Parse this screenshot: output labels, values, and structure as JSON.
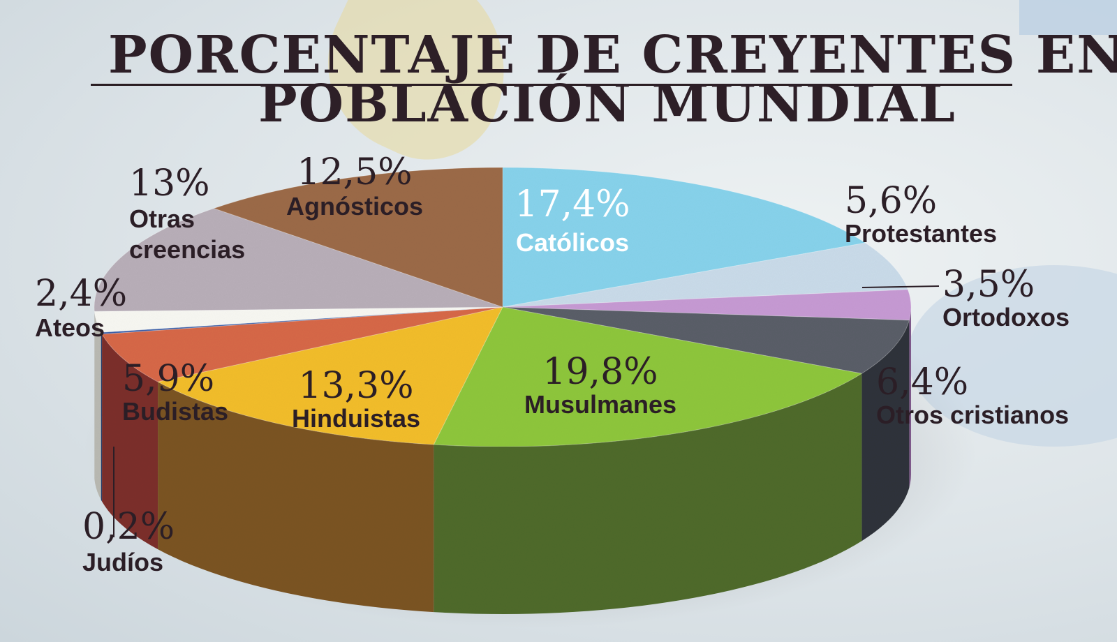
{
  "title": {
    "line1": "PORCENTAJE DE CREYENTES EN LA",
    "line2": "POBLACIÓN MUNDIAL"
  },
  "chart_data": {
    "type": "pie",
    "title": "PORCENTAJE DE CREYENTES EN LA POBLACIÓN MUNDIAL",
    "slices": [
      {
        "label": "Católicos",
        "percent_text": "17,4%",
        "value": 17.4,
        "color": "#87d2eb",
        "side": "#4b8fa8",
        "light_text": true
      },
      {
        "label": "Protestantes",
        "percent_text": "5,6%",
        "value": 5.6,
        "color": "#c9dbe9",
        "side": "#8da2b2"
      },
      {
        "label": "Ortodoxos",
        "percent_text": "3,5%",
        "value": 3.5,
        "color": "#c69ad3",
        "side": "#7f5a8c"
      },
      {
        "label": "Otros cristianos",
        "percent_text": "6,4%",
        "value": 6.4,
        "color": "#5a5e68",
        "side": "#30333a"
      },
      {
        "label": "Musulmanes",
        "percent_text": "19,8%",
        "value": 19.8,
        "color": "#8ec63c",
        "side": "#4f6a2c"
      },
      {
        "label": "Hinduistas",
        "percent_text": "13,3%",
        "value": 13.3,
        "color": "#f2bd2a",
        "side": "#7b5424"
      },
      {
        "label": "Budistas",
        "percent_text": "5,9%",
        "value": 5.9,
        "color": "#d66848",
        "side": "#7c2e2a"
      },
      {
        "label": "Judíos",
        "percent_text": "0,2%",
        "value": 0.2,
        "color": "#3b5fa8",
        "side": "#233a6a"
      },
      {
        "label": "Ateos",
        "percent_text": "2,4%",
        "value": 2.4,
        "color": "#f7f7f2",
        "side": "#b9b9b2"
      },
      {
        "label": "Otras creencias",
        "percent_text": "13%",
        "value": 13.0,
        "color": "#b8aeb8",
        "side": "#6c6470"
      },
      {
        "label": "Agnósticos",
        "percent_text": "12,5%",
        "value": 12.5,
        "color": "#9b6a48",
        "side": "#5a3c28"
      }
    ]
  }
}
